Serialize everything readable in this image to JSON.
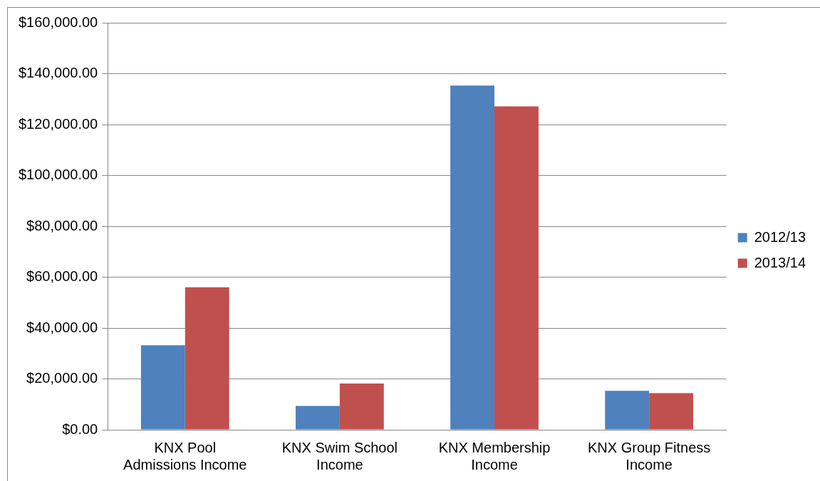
{
  "chart_data": {
    "type": "bar",
    "categories": [
      "KNX Pool Admissions Income",
      "KNX Swim School Income",
      "KNX Membership Income",
      "KNX Group Fitness Income"
    ],
    "series": [
      {
        "name": "2012/13",
        "color": "#4f81bd",
        "values": [
          33200,
          9400,
          135300,
          15300
        ]
      },
      {
        "name": "2013/14",
        "color": "#c0504d",
        "values": [
          56000,
          18200,
          127100,
          14400
        ]
      }
    ],
    "ylim": [
      0,
      160000
    ],
    "yticks": [
      {
        "value": 0,
        "label": "$0.00"
      },
      {
        "value": 20000,
        "label": "$20,000.00"
      },
      {
        "value": 40000,
        "label": "$40,000.00"
      },
      {
        "value": 60000,
        "label": "$60,000.00"
      },
      {
        "value": 80000,
        "label": "$80,000.00"
      },
      {
        "value": 100000,
        "label": "$100,000.00"
      },
      {
        "value": 120000,
        "label": "$120,000.00"
      },
      {
        "value": 140000,
        "label": "$140,000.00"
      },
      {
        "value": 160000,
        "label": "$160,000.00"
      }
    ],
    "grid": "y",
    "legend": "right"
  }
}
